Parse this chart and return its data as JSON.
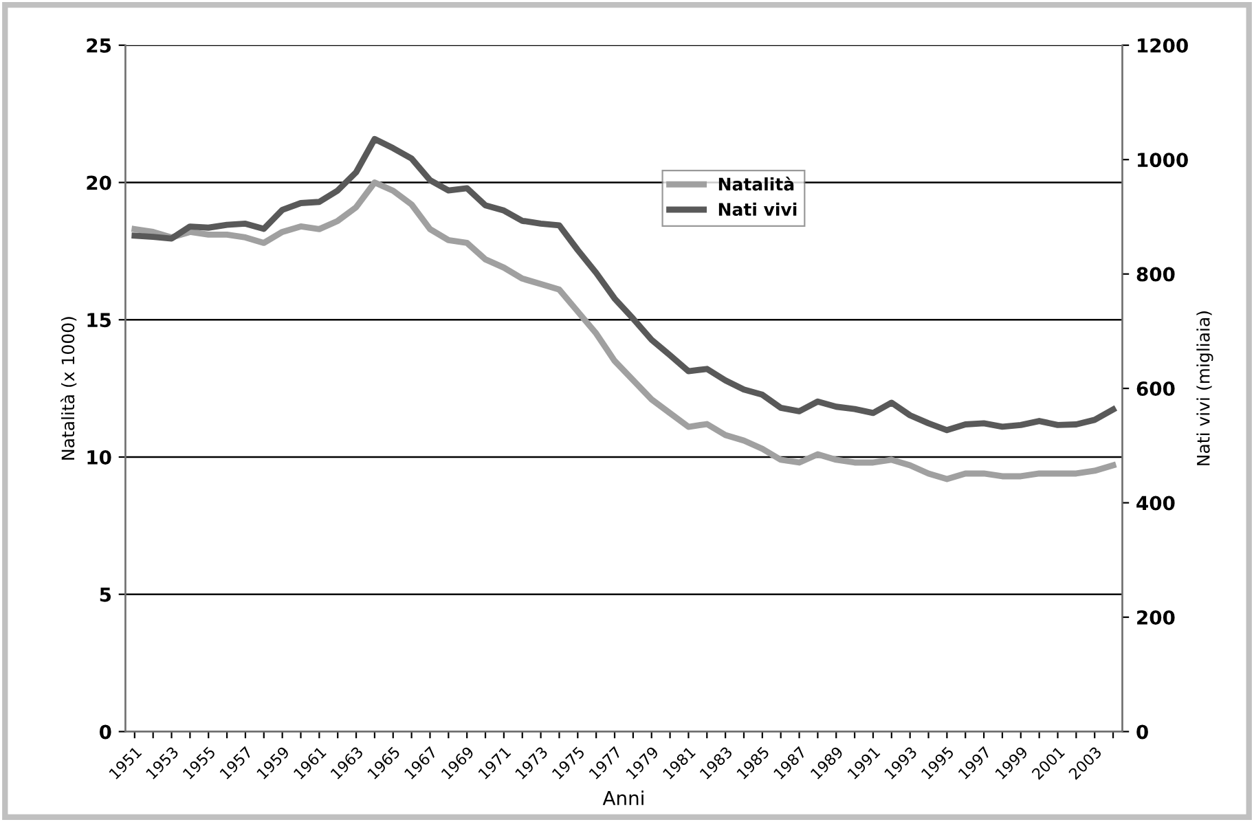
{
  "chart_data": {
    "type": "line",
    "xlabel": "Anni",
    "ylabel": "Natalità (x 1000)",
    "y2label": "Nati vivi (migliaia)",
    "categories": [
      "1951",
      null,
      "1953",
      null,
      "1955",
      null,
      "1957",
      null,
      "1959",
      null,
      "1961",
      null,
      "1963",
      null,
      "1965",
      null,
      "1967",
      null,
      "1969",
      null,
      "1971",
      null,
      "1973",
      null,
      "1975",
      null,
      "1977",
      null,
      "1979",
      null,
      "1981",
      null,
      "1983",
      null,
      "1985",
      null,
      "1987",
      null,
      "1989",
      null,
      "1991",
      null,
      "1993",
      null,
      "1995",
      null,
      "1997",
      null,
      "1999",
      null,
      "2001",
      null,
      "2003",
      null
    ],
    "series": [
      {
        "name": "Natalità",
        "color": "#a0a0a0",
        "values": [
          18.3,
          18.2,
          18.0,
          18.2,
          18.1,
          18.1,
          18.0,
          17.8,
          18.2,
          18.4,
          18.3,
          18.6,
          19.1,
          20.0,
          19.7,
          19.2,
          18.3,
          17.9,
          17.8,
          17.2,
          16.9,
          16.5,
          16.3,
          16.1,
          15.3,
          14.5,
          13.5,
          12.8,
          12.1,
          11.6,
          11.1,
          11.2,
          10.8,
          10.6,
          10.3,
          9.9,
          9.8,
          10.1,
          9.9,
          9.8,
          9.8,
          9.9,
          9.7,
          9.4,
          9.2,
          9.4,
          9.4,
          9.3,
          9.3,
          9.4,
          9.4,
          9.4,
          9.5,
          9.7
        ]
      },
      {
        "name": "Nati vivi",
        "color": "#595959",
        "axis": "y2",
        "values": [
          867,
          865,
          862,
          883,
          881,
          886,
          888,
          879,
          912,
          924,
          926,
          946,
          978,
          1036,
          1020,
          1002,
          964,
          946,
          950,
          920,
          911,
          893,
          888,
          885,
          842,
          802,
          757,
          722,
          685,
          658,
          630,
          634,
          614,
          598,
          589,
          566,
          560,
          577,
          568,
          564,
          557,
          575,
          553,
          539,
          527,
          537,
          539,
          533,
          536,
          543,
          536,
          537,
          545,
          563
        ]
      }
    ],
    "ylim": [
      0,
      25
    ],
    "yticks": [
      0,
      5,
      10,
      15,
      20,
      25
    ],
    "y2lim": [
      0,
      1200
    ],
    "y2ticks": [
      0,
      200,
      400,
      600,
      800,
      1000,
      1200
    ],
    "grid": "y",
    "legend": "top",
    "marker": "none",
    "line_style": "solid"
  }
}
